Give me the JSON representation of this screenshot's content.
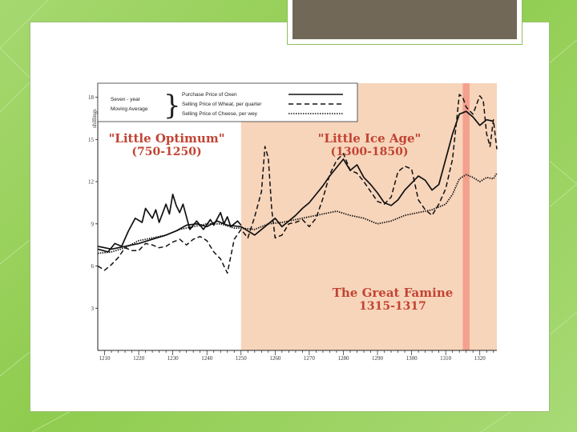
{
  "chart_data": {
    "type": "line",
    "title": "",
    "ylabel": "shillings",
    "xlim": [
      1208,
      1325
    ],
    "ylim": [
      0,
      19
    ],
    "x_ticks": [
      1210,
      1220,
      1230,
      1240,
      1250,
      1260,
      1270,
      1280,
      1290,
      1300,
      1310,
      1320
    ],
    "y_ticks": [
      3,
      6,
      9,
      12,
      15,
      18
    ],
    "legend": {
      "group_label_1": "Seven - year",
      "group_label_2": "Moving Average",
      "entries": [
        "Purchase Price of Oxen",
        "Selling Price of Wheat, per quarter",
        "Selling Price of Cheese, per wey"
      ]
    },
    "regions": [
      {
        "label": "\"Little Optimum\"",
        "period": "(750-1250)",
        "x": [
          1208,
          1250
        ]
      },
      {
        "label": "\"Little Ice Age\"",
        "period": "(1300-1850)",
        "x": [
          1250,
          1325
        ]
      },
      {
        "label": "The Great Famine",
        "period": "1315-1317",
        "x": [
          1315,
          1317
        ]
      }
    ],
    "colors": {
      "ice_age": "#f7d5bb",
      "famine": "#f4a08e",
      "annotation": "#c24433"
    },
    "series": [
      {
        "name": "Purchase Price of Oxen",
        "style": "solid",
        "points": [
          [
            1208,
            7.4
          ],
          [
            1212,
            7.2
          ],
          [
            1216,
            7.4
          ],
          [
            1220,
            7.6
          ],
          [
            1224,
            7.9
          ],
          [
            1228,
            8.2
          ],
          [
            1231,
            8.5
          ],
          [
            1234,
            8.9
          ],
          [
            1237,
            9.0
          ],
          [
            1240,
            8.8
          ],
          [
            1243,
            9.2
          ],
          [
            1246,
            8.9
          ],
          [
            1250,
            8.8
          ],
          [
            1254,
            8.2
          ],
          [
            1257,
            8.8
          ],
          [
            1260,
            9.4
          ],
          [
            1262,
            8.8
          ],
          [
            1264,
            9.2
          ],
          [
            1266,
            9.6
          ],
          [
            1268,
            10.1
          ],
          [
            1270,
            10.5
          ],
          [
            1272,
            11.1
          ],
          [
            1274,
            11.7
          ],
          [
            1276,
            12.4
          ],
          [
            1278,
            13.0
          ],
          [
            1280,
            13.6
          ],
          [
            1282,
            12.8
          ],
          [
            1284,
            13.2
          ],
          [
            1286,
            12.3
          ],
          [
            1288,
            11.8
          ],
          [
            1290,
            11.2
          ],
          [
            1292,
            10.5
          ],
          [
            1294,
            10.3
          ],
          [
            1296,
            10.7
          ],
          [
            1298,
            11.4
          ],
          [
            1300,
            11.9
          ],
          [
            1302,
            12.4
          ],
          [
            1304,
            12.1
          ],
          [
            1306,
            11.4
          ],
          [
            1308,
            11.8
          ],
          [
            1310,
            13.6
          ],
          [
            1312,
            15.4
          ],
          [
            1314,
            16.8
          ],
          [
            1316,
            17.0
          ],
          [
            1318,
            16.6
          ],
          [
            1320,
            16.0
          ],
          [
            1322,
            16.4
          ],
          [
            1324,
            16.3
          ]
        ]
      },
      {
        "name": "Selling Price of Wheat, per quarter",
        "style": "dashed",
        "points": [
          [
            1208,
            6.0
          ],
          [
            1210,
            5.7
          ],
          [
            1212,
            6.1
          ],
          [
            1214,
            6.6
          ],
          [
            1216,
            7.3
          ],
          [
            1218,
            7.1
          ],
          [
            1220,
            7.1
          ],
          [
            1222,
            7.6
          ],
          [
            1224,
            7.5
          ],
          [
            1226,
            7.3
          ],
          [
            1228,
            7.4
          ],
          [
            1230,
            7.7
          ],
          [
            1232,
            7.9
          ],
          [
            1234,
            7.5
          ],
          [
            1236,
            7.9
          ],
          [
            1238,
            8.1
          ],
          [
            1240,
            7.8
          ],
          [
            1242,
            7.0
          ],
          [
            1244,
            6.5
          ],
          [
            1246,
            5.5
          ],
          [
            1248,
            7.9
          ],
          [
            1250,
            8.6
          ],
          [
            1252,
            8.0
          ],
          [
            1254,
            9.5
          ],
          [
            1256,
            11.3
          ],
          [
            1257,
            14.5
          ],
          [
            1258,
            13.7
          ],
          [
            1259,
            10.0
          ],
          [
            1260,
            8.0
          ],
          [
            1262,
            8.2
          ],
          [
            1264,
            9.0
          ],
          [
            1266,
            9.1
          ],
          [
            1268,
            9.3
          ],
          [
            1270,
            8.8
          ],
          [
            1272,
            9.4
          ],
          [
            1274,
            10.8
          ],
          [
            1276,
            12.5
          ],
          [
            1278,
            13.5
          ],
          [
            1280,
            14.0
          ],
          [
            1282,
            12.8
          ],
          [
            1284,
            12.6
          ],
          [
            1286,
            12.0
          ],
          [
            1288,
            11.3
          ],
          [
            1290,
            10.6
          ],
          [
            1292,
            10.4
          ],
          [
            1294,
            10.9
          ],
          [
            1296,
            12.7
          ],
          [
            1298,
            13.1
          ],
          [
            1300,
            12.9
          ],
          [
            1302,
            10.7
          ],
          [
            1304,
            10.0
          ],
          [
            1306,
            9.6
          ],
          [
            1308,
            10.4
          ],
          [
            1310,
            11.5
          ],
          [
            1312,
            13.6
          ],
          [
            1314,
            18.2
          ],
          [
            1315,
            18.0
          ],
          [
            1316,
            17.3
          ],
          [
            1318,
            16.8
          ],
          [
            1320,
            18.1
          ],
          [
            1321,
            17.8
          ],
          [
            1322,
            15.4
          ],
          [
            1323,
            14.5
          ],
          [
            1324,
            16.4
          ],
          [
            1325,
            14.3
          ]
        ]
      },
      {
        "name": "Selling Price of Cheese, per wey",
        "style": "dotted",
        "points": [
          [
            1208,
            6.9
          ],
          [
            1212,
            7.0
          ],
          [
            1216,
            7.3
          ],
          [
            1220,
            7.8
          ],
          [
            1224,
            8.0
          ],
          [
            1228,
            8.2
          ],
          [
            1232,
            8.6
          ],
          [
            1236,
            8.8
          ],
          [
            1240,
            9.0
          ],
          [
            1244,
            9.0
          ],
          [
            1248,
            8.7
          ],
          [
            1250,
            8.7
          ],
          [
            1254,
            8.6
          ],
          [
            1258,
            9.0
          ],
          [
            1262,
            9.1
          ],
          [
            1266,
            9.3
          ],
          [
            1270,
            9.5
          ],
          [
            1274,
            9.7
          ],
          [
            1278,
            9.9
          ],
          [
            1282,
            9.6
          ],
          [
            1286,
            9.4
          ],
          [
            1290,
            9.0
          ],
          [
            1294,
            9.2
          ],
          [
            1298,
            9.6
          ],
          [
            1302,
            9.8
          ],
          [
            1306,
            10.0
          ],
          [
            1310,
            10.4
          ],
          [
            1312,
            11.1
          ],
          [
            1314,
            12.2
          ],
          [
            1316,
            12.5
          ],
          [
            1318,
            12.3
          ],
          [
            1320,
            12.0
          ],
          [
            1322,
            12.3
          ],
          [
            1324,
            12.2
          ],
          [
            1325,
            12.6
          ]
        ]
      },
      {
        "name": "Early irregular price series (solid, pre-1250)",
        "style": "solid",
        "points": [
          [
            1208,
            7.2
          ],
          [
            1211,
            7.0
          ],
          [
            1213,
            7.6
          ],
          [
            1215,
            7.4
          ],
          [
            1217,
            8.5
          ],
          [
            1219,
            9.4
          ],
          [
            1221,
            9.1
          ],
          [
            1222,
            10.1
          ],
          [
            1224,
            9.4
          ],
          [
            1225,
            10.0
          ],
          [
            1226,
            9.1
          ],
          [
            1228,
            10.4
          ],
          [
            1229,
            9.7
          ],
          [
            1230,
            11.1
          ],
          [
            1231,
            10.3
          ],
          [
            1232,
            9.8
          ],
          [
            1233,
            10.4
          ],
          [
            1235,
            8.6
          ],
          [
            1237,
            9.2
          ],
          [
            1239,
            8.6
          ],
          [
            1241,
            9.3
          ],
          [
            1242,
            8.9
          ],
          [
            1244,
            9.8
          ],
          [
            1245,
            9.0
          ],
          [
            1246,
            9.5
          ],
          [
            1247,
            8.8
          ],
          [
            1249,
            9.2
          ],
          [
            1250,
            8.9
          ]
        ]
      }
    ]
  }
}
